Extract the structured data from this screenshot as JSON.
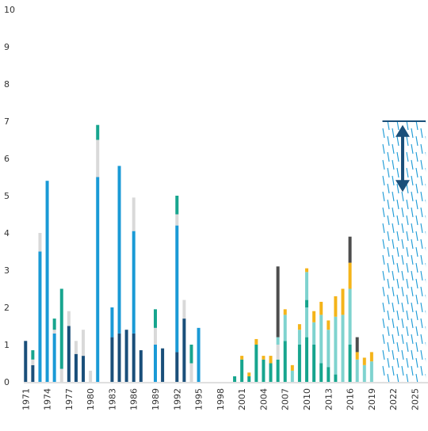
{
  "chart_data": {
    "type": "bar",
    "stacked": true,
    "title": "",
    "xlabel": "",
    "ylabel": "",
    "ylim": [
      0,
      10
    ],
    "y_ticks": [
      0,
      1,
      2,
      3,
      4,
      5,
      6,
      7,
      8,
      9,
      10
    ],
    "x_range": [
      1971,
      2026
    ],
    "x_ticks": [
      "1971",
      "1974",
      "1977",
      "1980",
      "1983",
      "1986",
      "1989",
      "1992",
      "1995",
      "1998",
      "2001",
      "2004",
      "2007",
      "2010",
      "2013",
      "2016",
      "2019",
      "2022",
      "2025"
    ],
    "grid": false,
    "legend": "none",
    "colors": {
      "navy": "#1a4f7a",
      "blue": "#1a9ad6",
      "green": "#17a58e",
      "light_teal": "#7fd3cf",
      "light_grey": "#d9d9d9",
      "yellow": "#f4b41a",
      "dark_grey": "#4d4d4d",
      "projection": "#1a4f7a"
    },
    "bars": [
      {
        "x": 1971,
        "segments": [
          {
            "c": "navy",
            "v": 1.1
          }
        ]
      },
      {
        "x": 1972,
        "segments": [
          {
            "c": "navy",
            "v": 0.45
          },
          {
            "c": "light_grey",
            "v": 0.15
          },
          {
            "c": "green",
            "v": 0.25
          }
        ]
      },
      {
        "x": 1973,
        "segments": [
          {
            "c": "blue",
            "v": 3.5
          },
          {
            "c": "light_grey",
            "v": 0.5
          }
        ]
      },
      {
        "x": 1974,
        "segments": [
          {
            "c": "blue",
            "v": 5.4
          }
        ]
      },
      {
        "x": 1975,
        "segments": [
          {
            "c": "blue",
            "v": 1.3
          },
          {
            "c": "light_grey",
            "v": 0.1
          },
          {
            "c": "green",
            "v": 0.3
          }
        ]
      },
      {
        "x": 1976,
        "segments": [
          {
            "c": "light_grey",
            "v": 0.35
          },
          {
            "c": "green",
            "v": 2.15
          }
        ]
      },
      {
        "x": 1977,
        "segments": [
          {
            "c": "navy",
            "v": 1.5
          },
          {
            "c": "light_grey",
            "v": 0.4
          }
        ]
      },
      {
        "x": 1978,
        "segments": [
          {
            "c": "navy",
            "v": 0.75
          },
          {
            "c": "light_grey",
            "v": 0.35
          }
        ]
      },
      {
        "x": 1979,
        "segments": [
          {
            "c": "navy",
            "v": 0.7
          },
          {
            "c": "light_grey",
            "v": 0.7
          }
        ]
      },
      {
        "x": 1980,
        "segments": [
          {
            "c": "light_grey",
            "v": 0.3
          }
        ]
      },
      {
        "x": 1981,
        "segments": [
          {
            "c": "blue",
            "v": 5.5
          },
          {
            "c": "light_grey",
            "v": 1.0
          },
          {
            "c": "green",
            "v": 0.4
          }
        ]
      },
      {
        "x": 1983,
        "segments": [
          {
            "c": "navy",
            "v": 1.2
          },
          {
            "c": "blue",
            "v": 0.8
          }
        ]
      },
      {
        "x": 1984,
        "segments": [
          {
            "c": "navy",
            "v": 1.3
          },
          {
            "c": "blue",
            "v": 4.5
          }
        ]
      },
      {
        "x": 1985,
        "segments": [
          {
            "c": "navy",
            "v": 1.4
          }
        ]
      },
      {
        "x": 1986,
        "segments": [
          {
            "c": "navy",
            "v": 1.3
          },
          {
            "c": "blue",
            "v": 2.75
          },
          {
            "c": "light_grey",
            "v": 0.9
          }
        ]
      },
      {
        "x": 1987,
        "segments": [
          {
            "c": "navy",
            "v": 0.85
          }
        ]
      },
      {
        "x": 1989,
        "segments": [
          {
            "c": "blue",
            "v": 1.0
          },
          {
            "c": "light_grey",
            "v": 0.45
          },
          {
            "c": "green",
            "v": 0.5
          }
        ]
      },
      {
        "x": 1990,
        "segments": [
          {
            "c": "navy",
            "v": 0.9
          }
        ]
      },
      {
        "x": 1992,
        "segments": [
          {
            "c": "navy",
            "v": 0.8
          },
          {
            "c": "blue",
            "v": 3.4
          },
          {
            "c": "light_grey",
            "v": 0.3
          },
          {
            "c": "green",
            "v": 0.5
          }
        ]
      },
      {
        "x": 1993,
        "segments": [
          {
            "c": "navy",
            "v": 1.7
          },
          {
            "c": "light_grey",
            "v": 0.5
          }
        ]
      },
      {
        "x": 1994,
        "segments": [
          {
            "c": "light_grey",
            "v": 0.5
          },
          {
            "c": "green",
            "v": 0.5
          }
        ]
      },
      {
        "x": 1995,
        "segments": [
          {
            "c": "blue",
            "v": 1.45
          }
        ]
      },
      {
        "x": 2000,
        "segments": [
          {
            "c": "green",
            "v": 0.15
          }
        ]
      },
      {
        "x": 2001,
        "segments": [
          {
            "c": "green",
            "v": 0.6
          },
          {
            "c": "yellow",
            "v": 0.1
          }
        ]
      },
      {
        "x": 2002,
        "segments": [
          {
            "c": "green",
            "v": 0.15
          },
          {
            "c": "yellow",
            "v": 0.1
          }
        ]
      },
      {
        "x": 2003,
        "segments": [
          {
            "c": "green",
            "v": 1.0
          },
          {
            "c": "yellow",
            "v": 0.15
          }
        ]
      },
      {
        "x": 2004,
        "segments": [
          {
            "c": "green",
            "v": 0.6
          },
          {
            "c": "yellow",
            "v": 0.1
          }
        ]
      },
      {
        "x": 2005,
        "segments": [
          {
            "c": "green",
            "v": 0.5
          },
          {
            "c": "yellow",
            "v": 0.2
          }
        ]
      },
      {
        "x": 2006,
        "segments": [
          {
            "c": "green",
            "v": 0.6
          },
          {
            "c": "light_grey",
            "v": 0.4
          },
          {
            "c": "light_teal",
            "v": 0.2
          },
          {
            "c": "dark_grey",
            "v": 1.9
          }
        ]
      },
      {
        "x": 2007,
        "segments": [
          {
            "c": "green",
            "v": 1.1
          },
          {
            "c": "light_teal",
            "v": 0.7
          },
          {
            "c": "yellow",
            "v": 0.15
          }
        ]
      },
      {
        "x": 2008,
        "segments": [
          {
            "c": "light_teal",
            "v": 0.3
          },
          {
            "c": "yellow",
            "v": 0.15
          }
        ]
      },
      {
        "x": 2009,
        "segments": [
          {
            "c": "green",
            "v": 1.0
          },
          {
            "c": "light_teal",
            "v": 0.4
          },
          {
            "c": "yellow",
            "v": 0.15
          }
        ]
      },
      {
        "x": 2010,
        "segments": [
          {
            "c": "green",
            "v": 1.2
          },
          {
            "c": "light_teal",
            "v": 0.8
          },
          {
            "c": "green",
            "v": 0.2
          },
          {
            "c": "light_teal",
            "v": 0.75
          },
          {
            "c": "yellow",
            "v": 0.1
          }
        ]
      },
      {
        "x": 2011,
        "segments": [
          {
            "c": "green",
            "v": 1.0
          },
          {
            "c": "light_teal",
            "v": 0.6
          },
          {
            "c": "yellow",
            "v": 0.3
          }
        ]
      },
      {
        "x": 2012,
        "segments": [
          {
            "c": "green",
            "v": 0.5
          },
          {
            "c": "light_teal",
            "v": 1.3
          },
          {
            "c": "yellow",
            "v": 0.35
          }
        ]
      },
      {
        "x": 2013,
        "segments": [
          {
            "c": "green",
            "v": 0.4
          },
          {
            "c": "light_teal",
            "v": 1.0
          },
          {
            "c": "yellow",
            "v": 0.25
          }
        ]
      },
      {
        "x": 2014,
        "segments": [
          {
            "c": "green",
            "v": 0.2
          },
          {
            "c": "light_teal",
            "v": 1.55
          },
          {
            "c": "yellow",
            "v": 0.55
          }
        ]
      },
      {
        "x": 2015,
        "segments": [
          {
            "c": "light_teal",
            "v": 1.8
          },
          {
            "c": "yellow",
            "v": 0.7
          }
        ]
      },
      {
        "x": 2016,
        "segments": [
          {
            "c": "green",
            "v": 1.0
          },
          {
            "c": "light_teal",
            "v": 1.5
          },
          {
            "c": "yellow",
            "v": 0.7
          },
          {
            "c": "dark_grey",
            "v": 0.7
          }
        ]
      },
      {
        "x": 2017,
        "segments": [
          {
            "c": "light_teal",
            "v": 0.6
          },
          {
            "c": "yellow",
            "v": 0.2
          },
          {
            "c": "dark_grey",
            "v": 0.4
          }
        ]
      },
      {
        "x": 2018,
        "segments": [
          {
            "c": "light_teal",
            "v": 0.45
          },
          {
            "c": "yellow",
            "v": 0.2
          }
        ]
      },
      {
        "x": 2019,
        "segments": [
          {
            "c": "light_teal",
            "v": 0.55
          },
          {
            "c": "yellow",
            "v": 0.25
          }
        ]
      }
    ],
    "projection": {
      "x_start": 2020.5,
      "x_end": 2026.5,
      "top": 7.0,
      "arrow_from": 6.9,
      "arrow_to": 5.1
    }
  }
}
